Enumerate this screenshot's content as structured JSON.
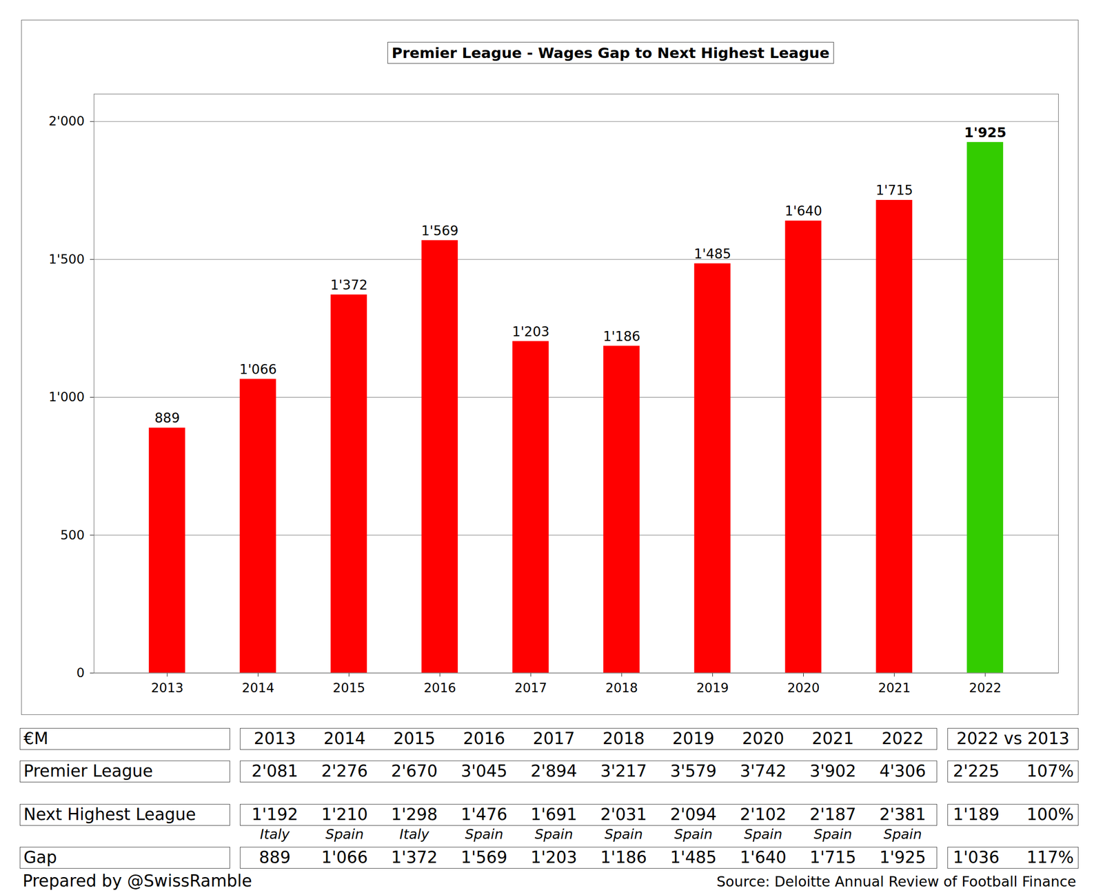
{
  "chart_data": {
    "type": "bar",
    "title": "Premier League - Wages Gap to Next Highest League",
    "categories": [
      "2013",
      "2014",
      "2015",
      "2016",
      "2017",
      "2018",
      "2019",
      "2020",
      "2021",
      "2022"
    ],
    "values": [
      889,
      1066,
      1372,
      1569,
      1203,
      1186,
      1485,
      1640,
      1715,
      1925
    ],
    "value_labels": [
      "889",
      "1'066",
      "1'372",
      "1'569",
      "1'203",
      "1'186",
      "1'485",
      "1'640",
      "1'715",
      "1'925"
    ],
    "colors": [
      "#ff0000",
      "#ff0000",
      "#ff0000",
      "#ff0000",
      "#ff0000",
      "#ff0000",
      "#ff0000",
      "#ff0000",
      "#ff0000",
      "#33cc00"
    ],
    "ylim": [
      0,
      2100
    ],
    "yticks": [
      0,
      500,
      {
        "value": 1000,
        "label": "1'000"
      },
      {
        "value": 1500,
        "label": "1'500"
      },
      {
        "value": 2000,
        "label": "2'000"
      }
    ],
    "grid": true,
    "data_labels": true
  },
  "table": {
    "unit": "€M",
    "years": [
      "2013",
      "2014",
      "2015",
      "2016",
      "2017",
      "2018",
      "2019",
      "2020",
      "2021",
      "2022"
    ],
    "comparison_header": "2022 vs 2013",
    "rows": [
      {
        "label": "Premier League",
        "values": [
          "2'081",
          "2'276",
          "2'670",
          "3'045",
          "2'894",
          "3'217",
          "3'579",
          "3'742",
          "3'902",
          "4'306"
        ],
        "change": "2'225",
        "change_pct": "107%"
      },
      {
        "label": "Next Highest League",
        "values": [
          "1'192",
          "1'210",
          "1'298",
          "1'476",
          "1'691",
          "2'031",
          "2'094",
          "2'102",
          "2'187",
          "2'381"
        ],
        "leagues": [
          "Italy",
          "Spain",
          "Italy",
          "Spain",
          "Spain",
          "Spain",
          "Spain",
          "Spain",
          "Spain",
          "Spain"
        ],
        "change": "1'189",
        "change_pct": "100%"
      },
      {
        "label": "Gap",
        "values": [
          "889",
          "1'066",
          "1'372",
          "1'569",
          "1'203",
          "1'186",
          "1'485",
          "1'640",
          "1'715",
          "1'925"
        ],
        "change": "1'036",
        "change_pct": "117%"
      }
    ]
  },
  "footer": {
    "left": "Prepared by @SwissRamble",
    "right": "Source: Deloitte Annual Review of Football Finance"
  }
}
